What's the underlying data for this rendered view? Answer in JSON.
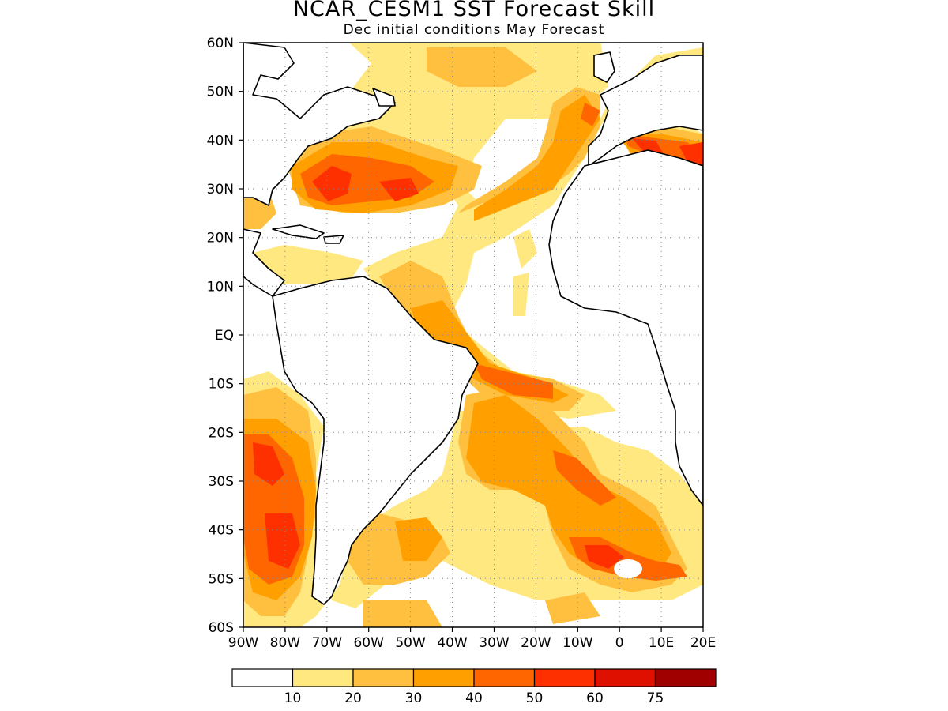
{
  "title": "NCAR_CESM1 SST Forecast Skill",
  "subtitle": "Dec initial conditions   May Forecast",
  "map": {
    "region": "Atlantic Ocean",
    "lon_range": [
      -90,
      20
    ],
    "lat_range": [
      -60,
      60
    ],
    "gridlines": "dotted",
    "lat_labels": [
      "60N",
      "50N",
      "40N",
      "30N",
      "20N",
      "10N",
      "EQ",
      "10S",
      "20S",
      "30S",
      "40S",
      "50S",
      "60S"
    ],
    "lon_labels": [
      "90W",
      "80W",
      "70W",
      "60W",
      "50W",
      "40W",
      "30W",
      "20W",
      "10W",
      "0",
      "10E",
      "20E"
    ]
  },
  "colorbar": {
    "labels": [
      "10",
      "20",
      "30",
      "40",
      "50",
      "60",
      "75"
    ],
    "colors": [
      "#ffffff",
      "#ffe880",
      "#ffc040",
      "#ffa000",
      "#ff6600",
      "#ff3000",
      "#e01000",
      "#a00000"
    ]
  }
}
